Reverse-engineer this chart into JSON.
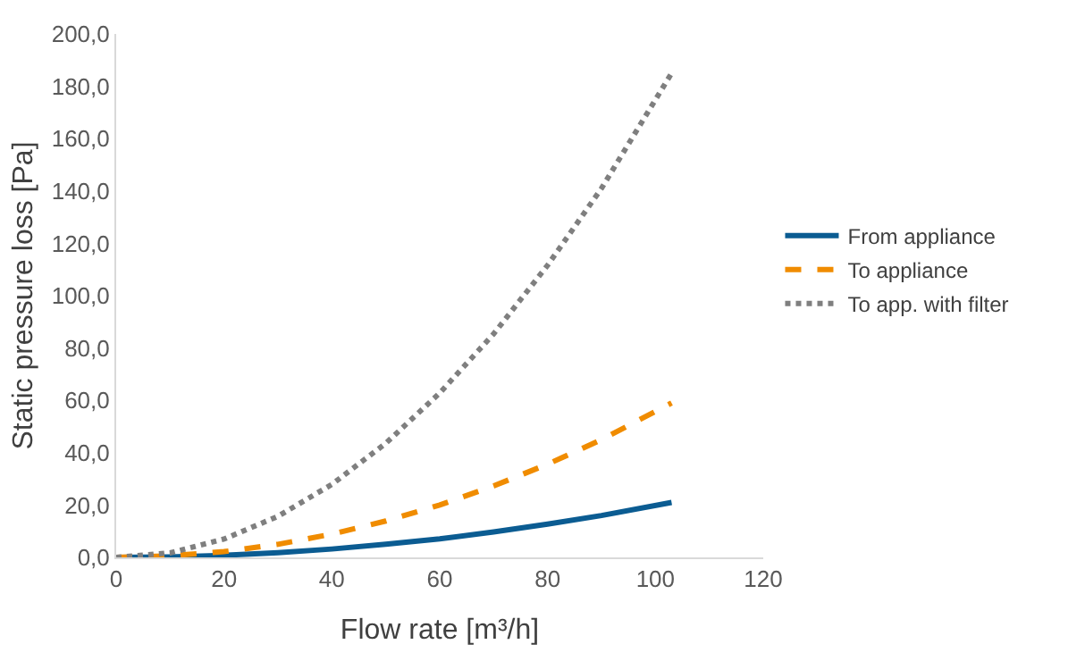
{
  "chart_data": {
    "type": "line",
    "xlabel": "Flow rate [m³/h]",
    "ylabel": "Static pressure loss [Pa]",
    "x": [
      0,
      10,
      20,
      30,
      40,
      50,
      60,
      70,
      80,
      90,
      103
    ],
    "series": [
      {
        "name": "From appliance",
        "color": "#0b5c92",
        "line_style": "solid",
        "values": [
          0,
          0.2,
          0.8,
          1.8,
          3.2,
          5,
          7.1,
          9.7,
          12.7,
          16,
          21
        ]
      },
      {
        "name": "To appliance",
        "color": "#f08c00",
        "line_style": "dashed",
        "values": [
          0,
          0.6,
          2.2,
          5,
          8.9,
          13.9,
          20,
          27.3,
          35.6,
          45,
          59
        ]
      },
      {
        "name": "To app. with filter",
        "color": "#7f7f7f",
        "line_style": "dotted",
        "values": [
          0,
          1.7,
          7,
          15.7,
          27.9,
          43.6,
          62.8,
          85.4,
          111.6,
          141,
          185
        ]
      }
    ],
    "xlim": [
      0,
      120
    ],
    "xticks": [
      0,
      20,
      40,
      60,
      80,
      100,
      120
    ],
    "ylim": [
      0,
      200
    ],
    "yticks": [
      {
        "value": 0,
        "label": "0,0"
      },
      {
        "value": 20,
        "label": "20,0"
      },
      {
        "value": 40,
        "label": "40,0"
      },
      {
        "value": 60,
        "label": "60,0"
      },
      {
        "value": 80,
        "label": "80,0"
      },
      {
        "value": 100,
        "label": "100,0"
      },
      {
        "value": 120,
        "label": "120,0"
      },
      {
        "value": 140,
        "label": "140,0"
      },
      {
        "value": 160,
        "label": "160,0"
      },
      {
        "value": 180,
        "label": "180,0"
      },
      {
        "value": 200,
        "label": "200,0"
      }
    ],
    "legend": "right",
    "marker": "none"
  }
}
